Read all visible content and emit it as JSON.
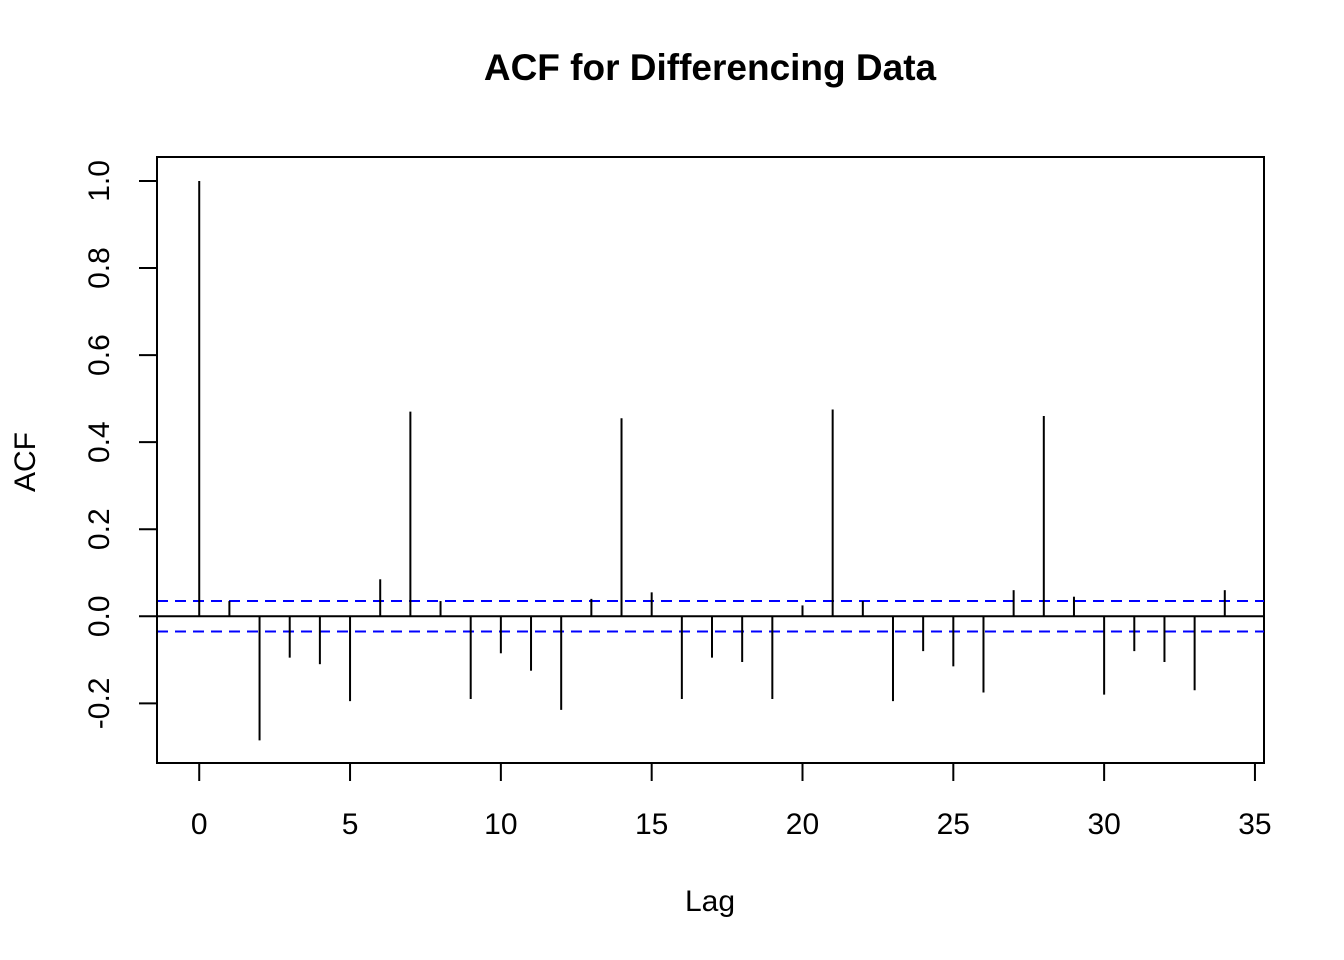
{
  "chart_data": {
    "type": "bar",
    "title": "ACF for Differencing Data",
    "xlabel": "Lag",
    "ylabel": "ACF",
    "xlim": [
      -1.4,
      35.3
    ],
    "ylim": [
      -0.337,
      1.055
    ],
    "x_ticks": [
      0,
      5,
      10,
      15,
      20,
      25,
      30,
      35
    ],
    "x_tick_labels": [
      "0",
      "5",
      "10",
      "15",
      "20",
      "25",
      "30",
      "35"
    ],
    "y_ticks": [
      -0.2,
      0.0,
      0.2,
      0.4,
      0.6,
      0.8,
      1.0
    ],
    "y_tick_labels": [
      "-0.2",
      "0.0",
      "0.2",
      "0.4",
      "0.6",
      "0.8",
      "1.0"
    ],
    "x": [
      0,
      1,
      2,
      3,
      4,
      5,
      6,
      7,
      8,
      9,
      10,
      11,
      12,
      13,
      14,
      15,
      16,
      17,
      18,
      19,
      20,
      21,
      22,
      23,
      24,
      25,
      26,
      27,
      28,
      29,
      30,
      31,
      32,
      33,
      34
    ],
    "values": [
      1.0,
      0.035,
      -0.285,
      -0.095,
      -0.11,
      -0.195,
      0.085,
      0.47,
      0.035,
      -0.19,
      -0.085,
      -0.125,
      -0.215,
      0.04,
      0.455,
      0.055,
      -0.19,
      -0.095,
      -0.105,
      -0.19,
      0.025,
      0.475,
      0.035,
      -0.195,
      -0.08,
      -0.115,
      -0.175,
      0.06,
      0.46,
      0.045,
      -0.18,
      -0.08,
      -0.105,
      -0.17,
      0.06
    ],
    "confidence_bound": 0.035,
    "bar_color": "#000000",
    "confidence_color": "#0000ff",
    "grid": false,
    "box": true
  }
}
